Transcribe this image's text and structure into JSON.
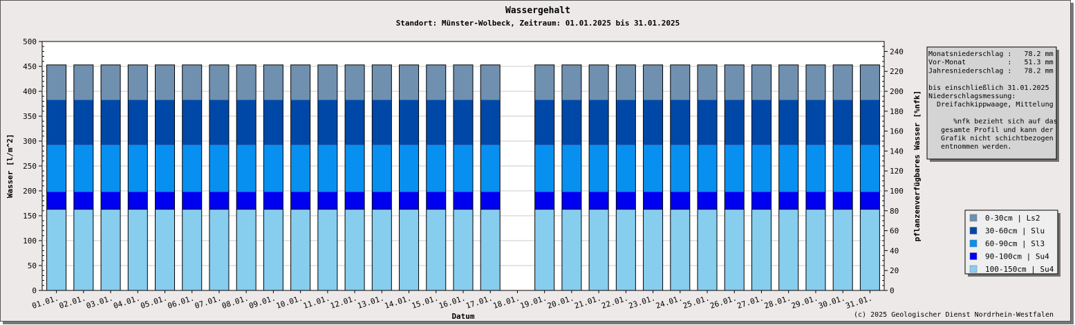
{
  "chart_data": {
    "type": "bar",
    "stacked": true,
    "title": "Wassergehalt",
    "subtitle": "Standort: Münster-Wolbeck, Zeitraum: 01.01.2025 bis 31.01.2025",
    "xlabel": "Datum",
    "ylabel": "Wasser [l/m^2]",
    "y2label": "pflanzenverfügbares Wasser [%nfk]",
    "ylim": [
      0,
      500
    ],
    "y_ticks": [
      0,
      50,
      100,
      150,
      200,
      250,
      300,
      350,
      400,
      450,
      500
    ],
    "y2lim": [
      0,
      250
    ],
    "y2_ticks": [
      0,
      20,
      40,
      60,
      80,
      100,
      120,
      140,
      160,
      180,
      200,
      220,
      240
    ],
    "grid": true,
    "legend_position": "bottom-right",
    "categories": [
      "01.01.",
      "02.01.",
      "03.01.",
      "04.01.",
      "05.01.",
      "06.01.",
      "07.01.",
      "08.01.",
      "09.01.",
      "10.01.",
      "11.01.",
      "12.01.",
      "13.01.",
      "14.01.",
      "15.01.",
      "16.01.",
      "17.01.",
      "18.01.",
      "19.01.",
      "20.01.",
      "21.01.",
      "22.01.",
      "23.01.",
      "24.01.",
      "25.01.",
      "26.01.",
      "27.01.",
      "28.01.",
      "29.01.",
      "30.01.",
      "31.01."
    ],
    "series": [
      {
        "name": "100-150cm | Su4",
        "color": "#87cdee",
        "values": [
          163,
          163,
          163,
          163,
          163,
          163,
          163,
          163,
          163,
          163,
          163,
          163,
          163,
          163,
          163,
          163,
          163,
          null,
          163,
          163,
          163,
          163,
          163,
          163,
          163,
          163,
          163,
          163,
          163,
          163,
          163
        ]
      },
      {
        "name": "90-100cm | Su4",
        "color": "#0000f0",
        "values": [
          35,
          35,
          35,
          35,
          35,
          35,
          35,
          35,
          35,
          35,
          35,
          35,
          35,
          35,
          35,
          35,
          35,
          null,
          35,
          35,
          35,
          35,
          35,
          35,
          35,
          35,
          35,
          35,
          35,
          35,
          35
        ]
      },
      {
        "name": "60-90cm | Sl3",
        "color": "#0890f0",
        "values": [
          94,
          94,
          94,
          94,
          94,
          94,
          94,
          94,
          94,
          94,
          94,
          94,
          94,
          94,
          94,
          94,
          94,
          null,
          94,
          94,
          94,
          94,
          94,
          94,
          94,
          94,
          94,
          94,
          94,
          94,
          94
        ]
      },
      {
        "name": "30-60cm | Slu",
        "color": "#0048a8",
        "values": [
          91,
          91,
          91,
          91,
          91,
          91,
          91,
          91,
          91,
          91,
          91,
          91,
          91,
          91,
          91,
          91,
          91,
          null,
          91,
          91,
          91,
          91,
          91,
          91,
          91,
          91,
          91,
          91,
          91,
          91,
          91
        ]
      },
      {
        "name": "0-30cm | Ls2",
        "color": "#7090b0",
        "values": [
          70,
          70,
          70,
          70,
          70,
          70,
          70,
          70,
          70,
          70,
          70,
          70,
          70,
          70,
          70,
          70,
          70,
          null,
          70,
          70,
          70,
          70,
          70,
          70,
          70,
          70,
          70,
          70,
          70,
          70,
          70
        ]
      }
    ],
    "legend_order": [
      "0-30cm | Ls2",
      "30-60cm | Slu",
      "60-90cm | Sl3",
      "90-100cm | Su4",
      "100-150cm | Su4"
    ]
  },
  "info_box": {
    "lines": [
      "Monatsniederschlag :   78.2 mm",
      "Vor-Monat          :   51.3 mm",
      "Jahresniederschlag :   78.2 mm",
      "",
      "bis einschließlich 31.01.2025",
      "Niederschlagsmessung:",
      "  Dreifachkippwaage, Mittelung",
      "",
      "      %nfk bezieht sich auf das",
      "   gesamte Profil und kann der",
      "   Grafik nicht schichtbezogen",
      "   entnommen werden."
    ]
  },
  "copyright": "(c) 2025 Geologischer Dienst Nordrhein-Westfalen"
}
